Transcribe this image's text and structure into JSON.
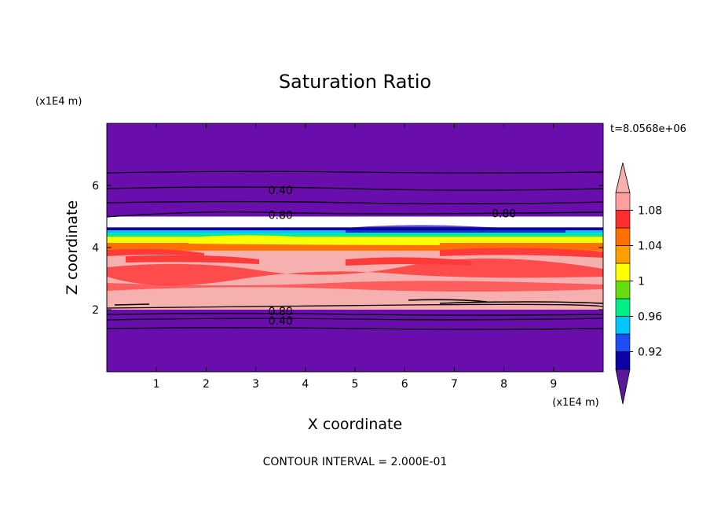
{
  "chart_data": {
    "type": "heatmap",
    "title": "Saturation Ratio",
    "xlabel": "X coordinate",
    "ylabel": "Z coordinate",
    "x_unit": "(x1E4 m)",
    "y_unit": "(x1E4 m)",
    "time_label": "t=8.0568e+06",
    "footer": "CONTOUR INTERVAL = 2.000E-01",
    "xlim": [
      0,
      10
    ],
    "ylim": [
      0,
      8
    ],
    "x_ticks": [
      "1",
      "2",
      "3",
      "4",
      "5",
      "6",
      "7",
      "8",
      "9"
    ],
    "y_ticks": [
      "2",
      "4",
      "6"
    ],
    "colorbar": {
      "levels": [
        0.9,
        0.92,
        0.94,
        0.96,
        0.98,
        1.0,
        1.02,
        1.04,
        1.06,
        1.08,
        1.1
      ],
      "labels": [
        "0.92",
        "0.96",
        "1",
        "1.04",
        "1.08"
      ],
      "colors": [
        "#5a189a",
        "#0c00a8",
        "#1e4cf5",
        "#00c8ff",
        "#00ee88",
        "#66dd11",
        "#ffff00",
        "#ffa000",
        "#ff7000",
        "#ff2e2e",
        "#ff9e9e",
        "#f7b0b0"
      ],
      "extend": "both"
    },
    "bands": [
      {
        "z_from": 5.0,
        "z_to": 8.0,
        "value": 0.4,
        "color": "#6a0dad"
      },
      {
        "z_from": 4.55,
        "z_to": 4.65,
        "value": 0.92,
        "color": "#0c00a8"
      },
      {
        "z_from": 4.45,
        "z_to": 4.55,
        "value": 0.96,
        "color": "#00c8ff"
      },
      {
        "z_from": 4.35,
        "z_to": 4.45,
        "value": 1.0,
        "color": "#00ee88"
      },
      {
        "z_from": 4.15,
        "z_to": 4.35,
        "value": 1.04,
        "color": "#ffff00"
      },
      {
        "z_from": 3.9,
        "z_to": 4.15,
        "value": 1.06,
        "color": "#ff7000"
      },
      {
        "z_from": 2.0,
        "z_to": 3.9,
        "value": 1.1,
        "color": "#f7b0b0"
      },
      {
        "z_from": 0.0,
        "z_to": 2.0,
        "value": 0.4,
        "color": "#6a0dad"
      }
    ],
    "contour_labels": [
      {
        "text": "0.40",
        "x": 3.5,
        "z": 5.85
      },
      {
        "text": "0.80",
        "x": 3.5,
        "z": 5.05
      },
      {
        "text": "0.80",
        "x": 8.0,
        "z": 5.1
      },
      {
        "text": "0.80",
        "x": 3.5,
        "z": 1.95
      },
      {
        "text": "0.40",
        "x": 3.5,
        "z": 1.65
      }
    ]
  }
}
